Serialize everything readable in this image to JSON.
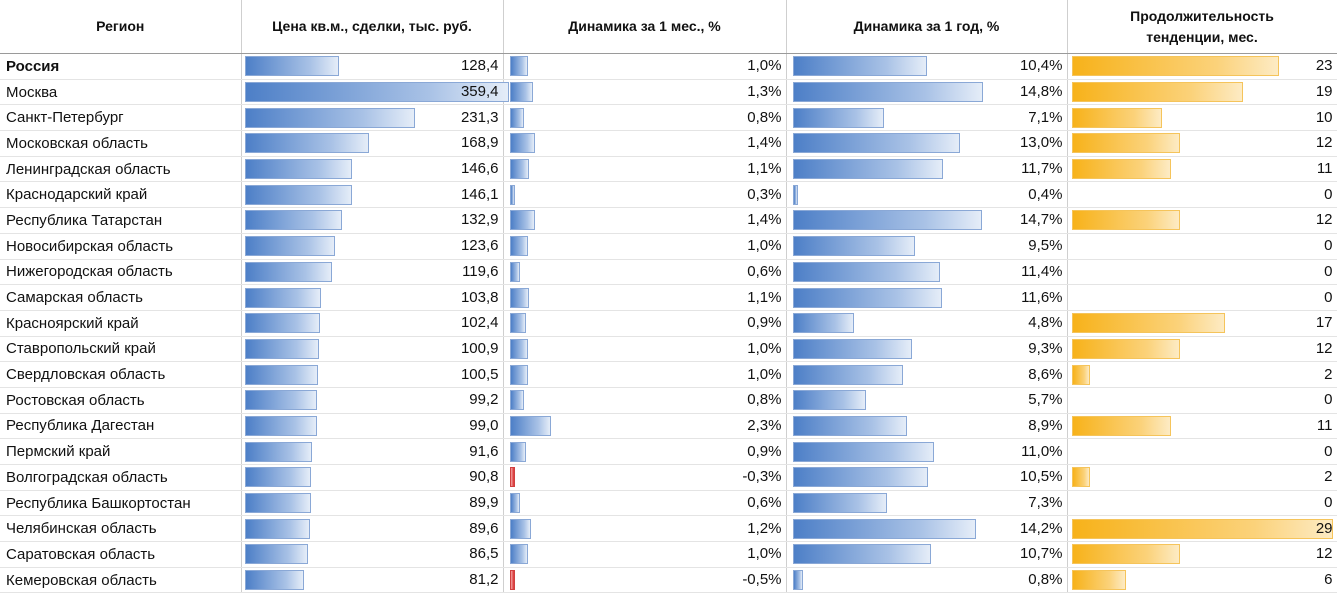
{
  "headers": {
    "region": "Регион",
    "price": "Цена кв.м., сделки, тыс. руб.",
    "month": "Динамика за 1 мес., %",
    "year": "Динамика за 1 год, %",
    "trend_line1": "Продолжительность",
    "trend_line2": "тенденции, мес."
  },
  "colors": {
    "bar_blue": "#4d7fc7",
    "bar_orange": "#f7b21a",
    "bar_red": "#d83030"
  },
  "rows": [
    {
      "region": "Россия",
      "price": "128,4",
      "price_v": 128.4,
      "month": "1,0%",
      "month_v": 1.0,
      "year": "10,4%",
      "year_v": 10.4,
      "trend": "23",
      "trend_v": 23,
      "bold": true
    },
    {
      "region": "Москва",
      "price": "359,4",
      "price_v": 359.4,
      "month": "1,3%",
      "month_v": 1.3,
      "year": "14,8%",
      "year_v": 14.8,
      "trend": "19",
      "trend_v": 19
    },
    {
      "region": "Санкт-Петербург",
      "price": "231,3",
      "price_v": 231.3,
      "month": "0,8%",
      "month_v": 0.8,
      "year": "7,1%",
      "year_v": 7.1,
      "trend": "10",
      "trend_v": 10
    },
    {
      "region": "Московская область",
      "price": "168,9",
      "price_v": 168.9,
      "month": "1,4%",
      "month_v": 1.4,
      "year": "13,0%",
      "year_v": 13.0,
      "trend": "12",
      "trend_v": 12
    },
    {
      "region": "Ленинградская область",
      "price": "146,6",
      "price_v": 146.6,
      "month": "1,1%",
      "month_v": 1.1,
      "year": "11,7%",
      "year_v": 11.7,
      "trend": "11",
      "trend_v": 11
    },
    {
      "region": "Краснодарский край",
      "price": "146,1",
      "price_v": 146.1,
      "month": "0,3%",
      "month_v": 0.3,
      "year": "0,4%",
      "year_v": 0.4,
      "trend": "0",
      "trend_v": 0
    },
    {
      "region": "Республика Татарстан",
      "price": "132,9",
      "price_v": 132.9,
      "month": "1,4%",
      "month_v": 1.4,
      "year": "14,7%",
      "year_v": 14.7,
      "trend": "12",
      "trend_v": 12
    },
    {
      "region": "Новосибирская область",
      "price": "123,6",
      "price_v": 123.6,
      "month": "1,0%",
      "month_v": 1.0,
      "year": "9,5%",
      "year_v": 9.5,
      "trend": "0",
      "trend_v": 0
    },
    {
      "region": "Нижегородская область",
      "price": "119,6",
      "price_v": 119.6,
      "month": "0,6%",
      "month_v": 0.6,
      "year": "11,4%",
      "year_v": 11.4,
      "trend": "0",
      "trend_v": 0
    },
    {
      "region": "Самарская область",
      "price": "103,8",
      "price_v": 103.8,
      "month": "1,1%",
      "month_v": 1.1,
      "year": "11,6%",
      "year_v": 11.6,
      "trend": "0",
      "trend_v": 0
    },
    {
      "region": "Красноярский край",
      "price": "102,4",
      "price_v": 102.4,
      "month": "0,9%",
      "month_v": 0.9,
      "year": "4,8%",
      "year_v": 4.8,
      "trend": "17",
      "trend_v": 17
    },
    {
      "region": "Ставропольский край",
      "price": "100,9",
      "price_v": 100.9,
      "month": "1,0%",
      "month_v": 1.0,
      "year": "9,3%",
      "year_v": 9.3,
      "trend": "12",
      "trend_v": 12
    },
    {
      "region": "Свердловская область",
      "price": "100,5",
      "price_v": 100.5,
      "month": "1,0%",
      "month_v": 1.0,
      "year": "8,6%",
      "year_v": 8.6,
      "trend": "2",
      "trend_v": 2
    },
    {
      "region": "Ростовская область",
      "price": "99,2",
      "price_v": 99.2,
      "month": "0,8%",
      "month_v": 0.8,
      "year": "5,7%",
      "year_v": 5.7,
      "trend": "0",
      "trend_v": 0
    },
    {
      "region": "Республика Дагестан",
      "price": "99,0",
      "price_v": 99.0,
      "month": "2,3%",
      "month_v": 2.3,
      "year": "8,9%",
      "year_v": 8.9,
      "trend": "11",
      "trend_v": 11
    },
    {
      "region": "Пермский край",
      "price": "91,6",
      "price_v": 91.6,
      "month": "0,9%",
      "month_v": 0.9,
      "year": "11,0%",
      "year_v": 11.0,
      "trend": "0",
      "trend_v": 0
    },
    {
      "region": "Волгоградская область",
      "price": "90,8",
      "price_v": 90.8,
      "month": "-0,3%",
      "month_v": -0.3,
      "year": "10,5%",
      "year_v": 10.5,
      "trend": "2",
      "trend_v": 2
    },
    {
      "region": "Республика Башкортостан",
      "price": "89,9",
      "price_v": 89.9,
      "month": "0,6%",
      "month_v": 0.6,
      "year": "7,3%",
      "year_v": 7.3,
      "trend": "0",
      "trend_v": 0
    },
    {
      "region": "Челябинская область",
      "price": "89,6",
      "price_v": 89.6,
      "month": "1,2%",
      "month_v": 1.2,
      "year": "14,2%",
      "year_v": 14.2,
      "trend": "29",
      "trend_v": 29
    },
    {
      "region": "Саратовская область",
      "price": "86,5",
      "price_v": 86.5,
      "month": "1,0%",
      "month_v": 1.0,
      "year": "10,7%",
      "year_v": 10.7,
      "trend": "12",
      "trend_v": 12
    },
    {
      "region": "Кемеровская область",
      "price": "81,2",
      "price_v": 81.2,
      "month": "-0,5%",
      "month_v": -0.5,
      "year": "0,8%",
      "year_v": 0.8,
      "trend": "6",
      "trend_v": 6
    }
  ]
}
